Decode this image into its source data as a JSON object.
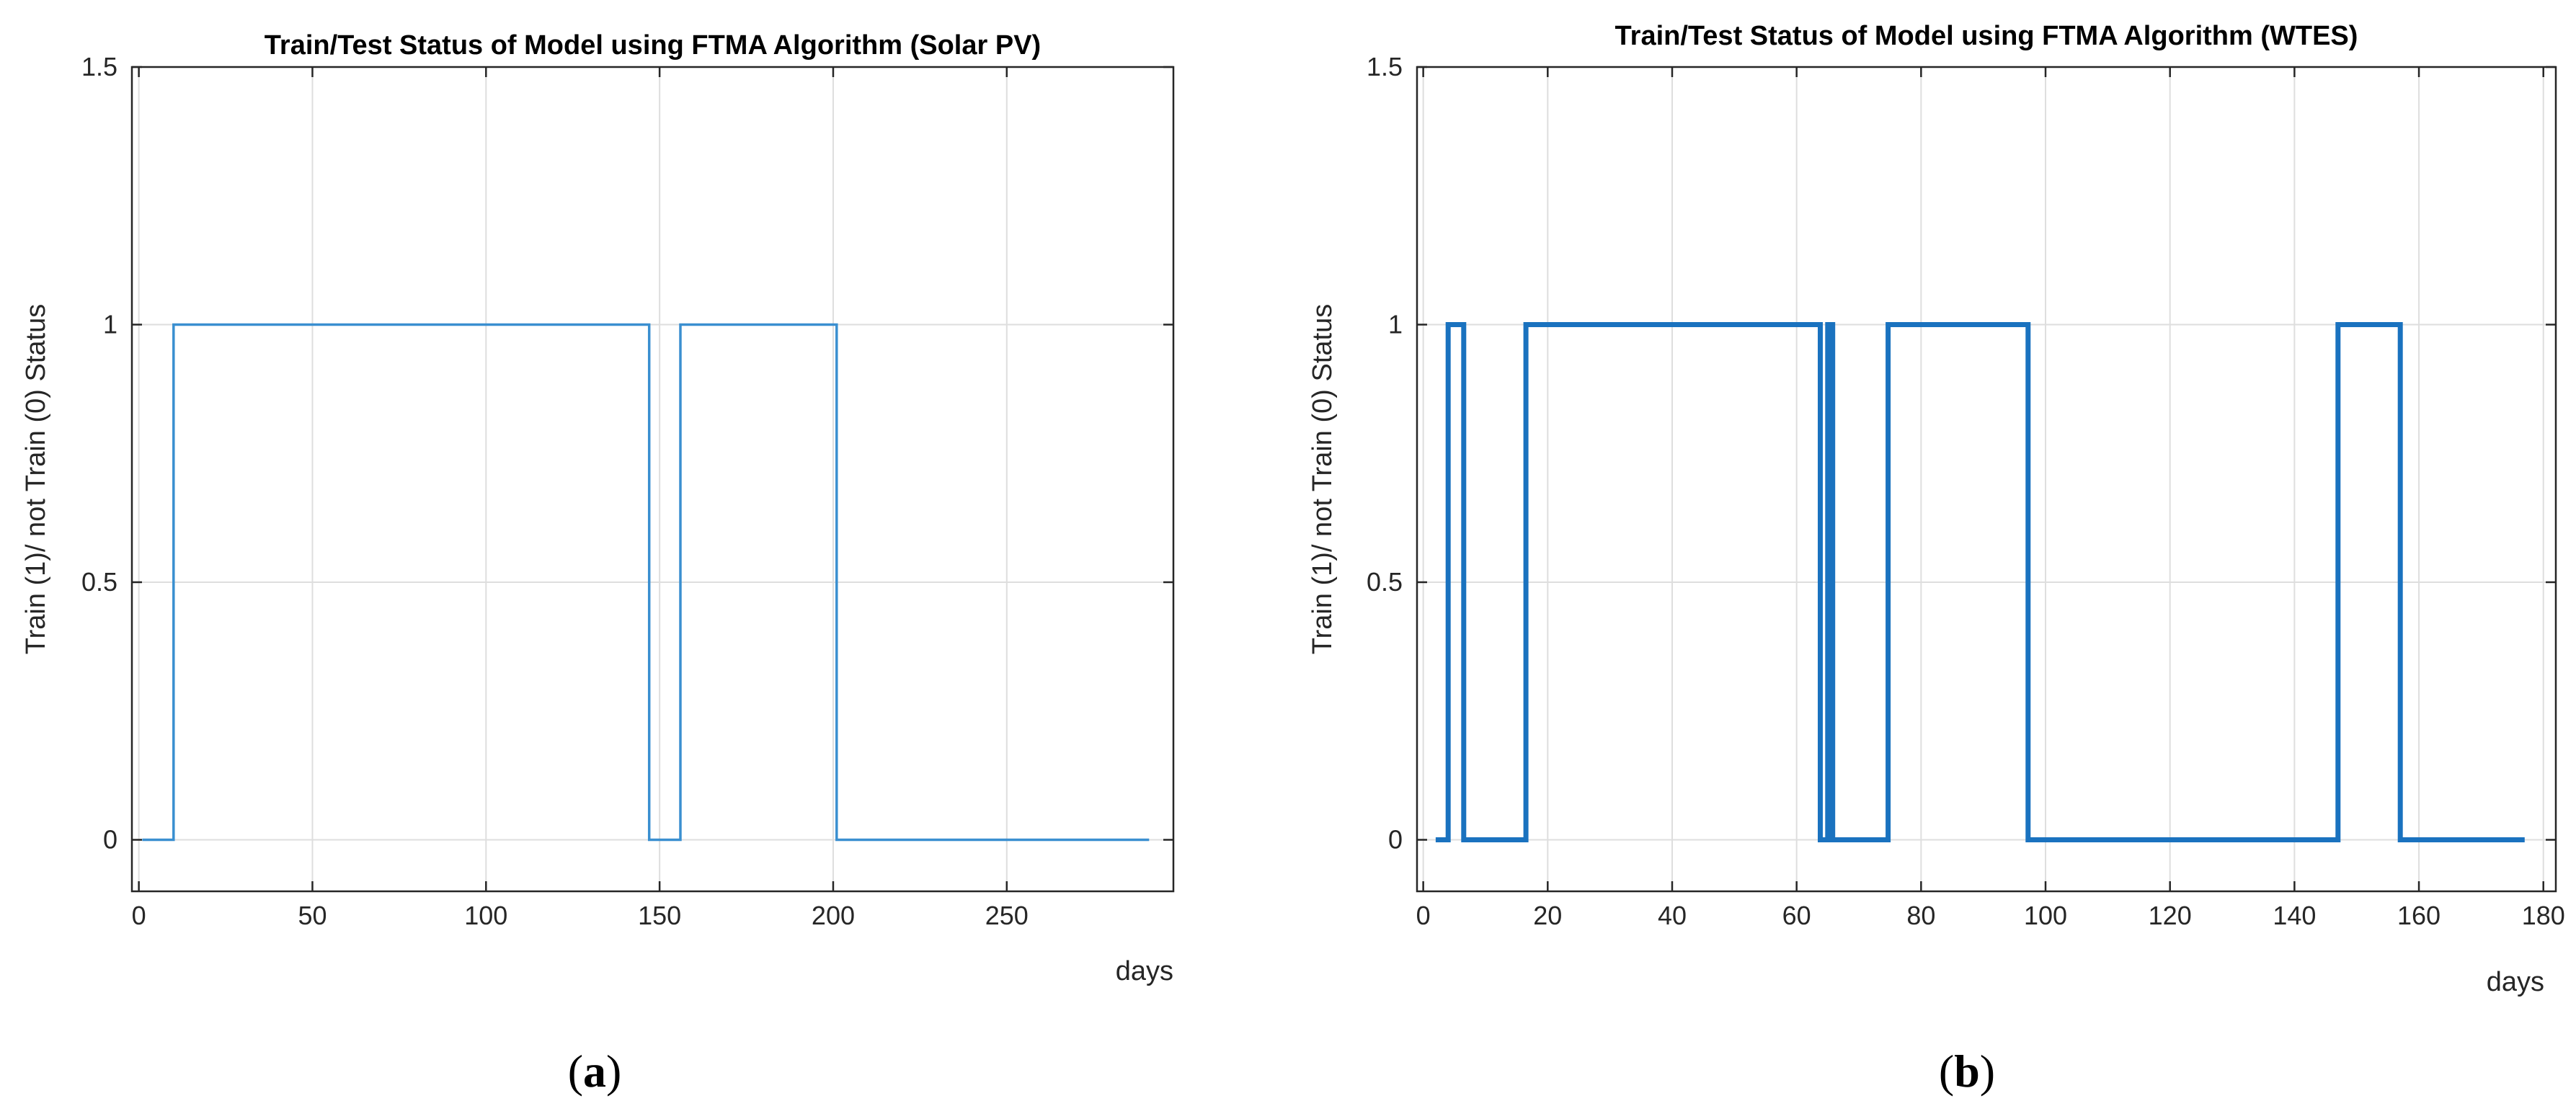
{
  "chart_data": [
    {
      "type": "line",
      "title": "Train/Test Status of Model using FTMA Algorithm (Solar PV)",
      "xlabel": "days",
      "ylabel": "Train (1)/ not Train (0) Status",
      "xlim": [
        -2,
        298
      ],
      "ylim": [
        -0.1,
        1.5
      ],
      "xticks": [
        0,
        50,
        100,
        150,
        200,
        250
      ],
      "xtick_labels": [
        "0",
        "50",
        "100",
        "150",
        "200",
        "250"
      ],
      "yticks": [
        0,
        0.5,
        1,
        1.5
      ],
      "ytick_labels": [
        "0",
        "0.5",
        "1",
        "1.5"
      ],
      "grid": true,
      "caption": "(a)",
      "caption_letter": "a",
      "line_color": "#3a8fd0",
      "series": [
        {
          "name": "Train status",
          "x": [
            1,
            10,
            10,
            147,
            147,
            156,
            156,
            201,
            201,
            291
          ],
          "y": [
            0,
            0,
            1,
            1,
            0,
            0,
            1,
            1,
            0,
            0
          ]
        }
      ]
    },
    {
      "type": "line",
      "title": "Train/Test Status of Model using FTMA Algorithm (WTES)",
      "xlabel": "days",
      "ylabel": "Train (1)/ not Train (0) Status",
      "xlim": [
        -1,
        182
      ],
      "ylim": [
        -0.1,
        1.5
      ],
      "xticks": [
        0,
        20,
        40,
        60,
        80,
        100,
        120,
        140,
        160,
        180
      ],
      "xtick_labels": [
        "0",
        "20",
        "40",
        "60",
        "80",
        "100",
        "120",
        "140",
        "160",
        "180"
      ],
      "yticks": [
        0,
        0.5,
        1,
        1.5
      ],
      "ytick_labels": [
        "0",
        "0.5",
        "1",
        "1.5"
      ],
      "grid": true,
      "caption": "(b)",
      "caption_letter": "b",
      "line_color": "#1a72bf",
      "series": [
        {
          "name": "Train status",
          "x": [
            2,
            4,
            4,
            6.5,
            6.5,
            16.5,
            16.5,
            63.8,
            63.8,
            65,
            65,
            65.8,
            65.8,
            74.7,
            74.7,
            97.2,
            97.2,
            147,
            147,
            157,
            157,
            177
          ],
          "y": [
            0,
            0,
            1,
            1,
            0,
            0,
            1,
            1,
            0,
            0,
            1,
            1,
            0,
            0,
            1,
            1,
            0,
            0,
            1,
            1,
            0,
            0
          ]
        }
      ]
    }
  ]
}
